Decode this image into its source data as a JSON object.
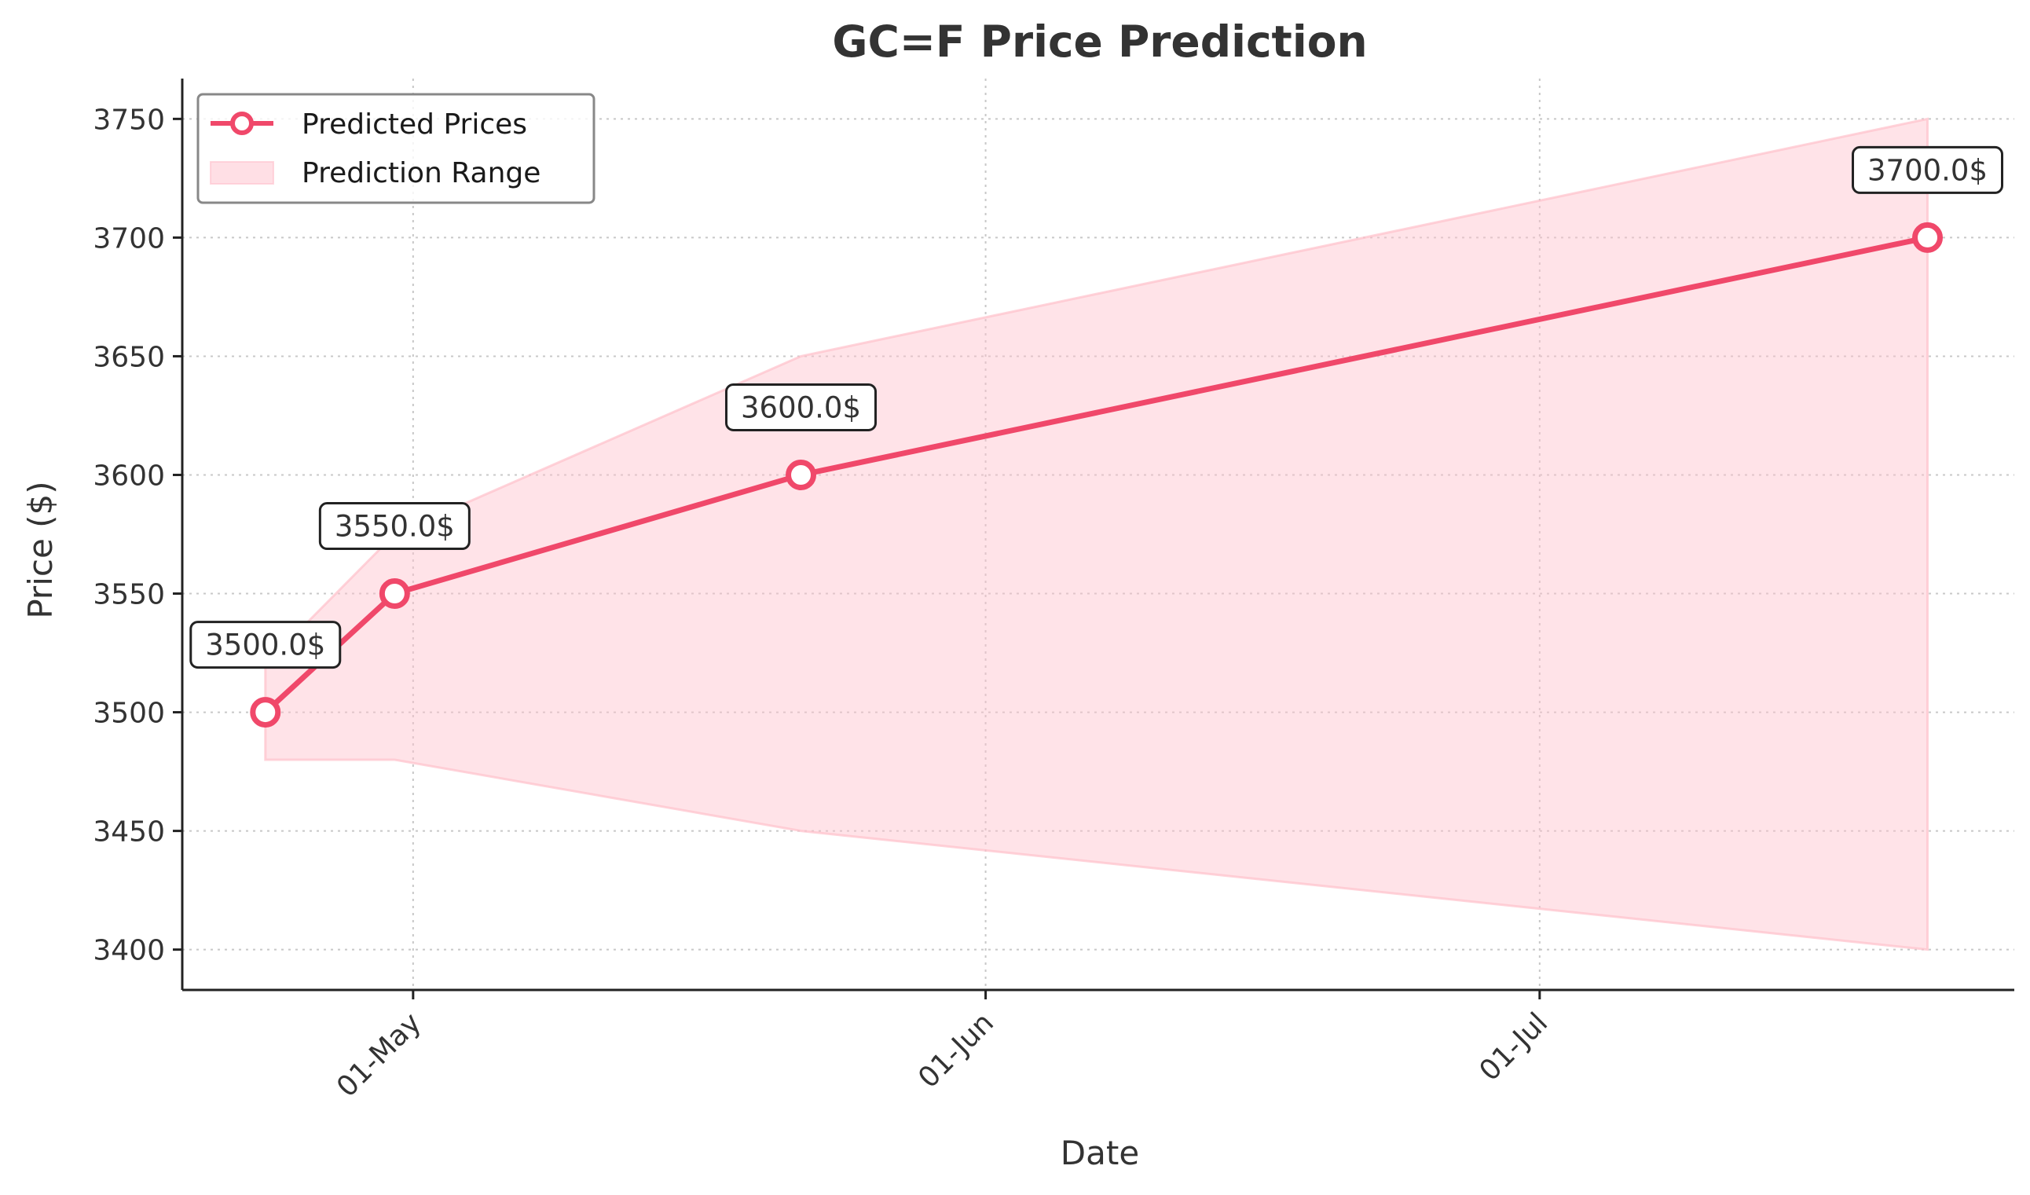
{
  "chart_data": {
    "type": "line",
    "title": "GC=F Price Prediction",
    "xlabel": "Date",
    "ylabel": "Price ($)",
    "ylim": [
      3383,
      3767
    ],
    "yticks": [
      3400,
      3450,
      3500,
      3550,
      3600,
      3650,
      3700,
      3750
    ],
    "xticks": [
      {
        "label": "01-May",
        "day": 30
      },
      {
        "label": "01-Jun",
        "day": 61
      },
      {
        "label": "01-Jul",
        "day": 91
      }
    ],
    "xlim": [
      17.5,
      116.7
    ],
    "grid": true,
    "legend_position": "top-left",
    "series": [
      {
        "name": "Predicted Prices",
        "color": "#f0486a",
        "points": [
          {
            "day": 22,
            "value": 3500,
            "label": "3500.0$"
          },
          {
            "day": 29,
            "value": 3550,
            "label": "3550.0$"
          },
          {
            "day": 51,
            "value": 3600,
            "label": "3600.0$"
          },
          {
            "day": 112,
            "value": 3700,
            "label": "3700.0$"
          }
        ]
      }
    ],
    "range": {
      "name": "Prediction Range",
      "color": "#ffc0cb",
      "lower": [
        3480,
        3480,
        3450,
        3400
      ],
      "upper": [
        3520,
        3575,
        3650,
        3750
      ]
    }
  }
}
